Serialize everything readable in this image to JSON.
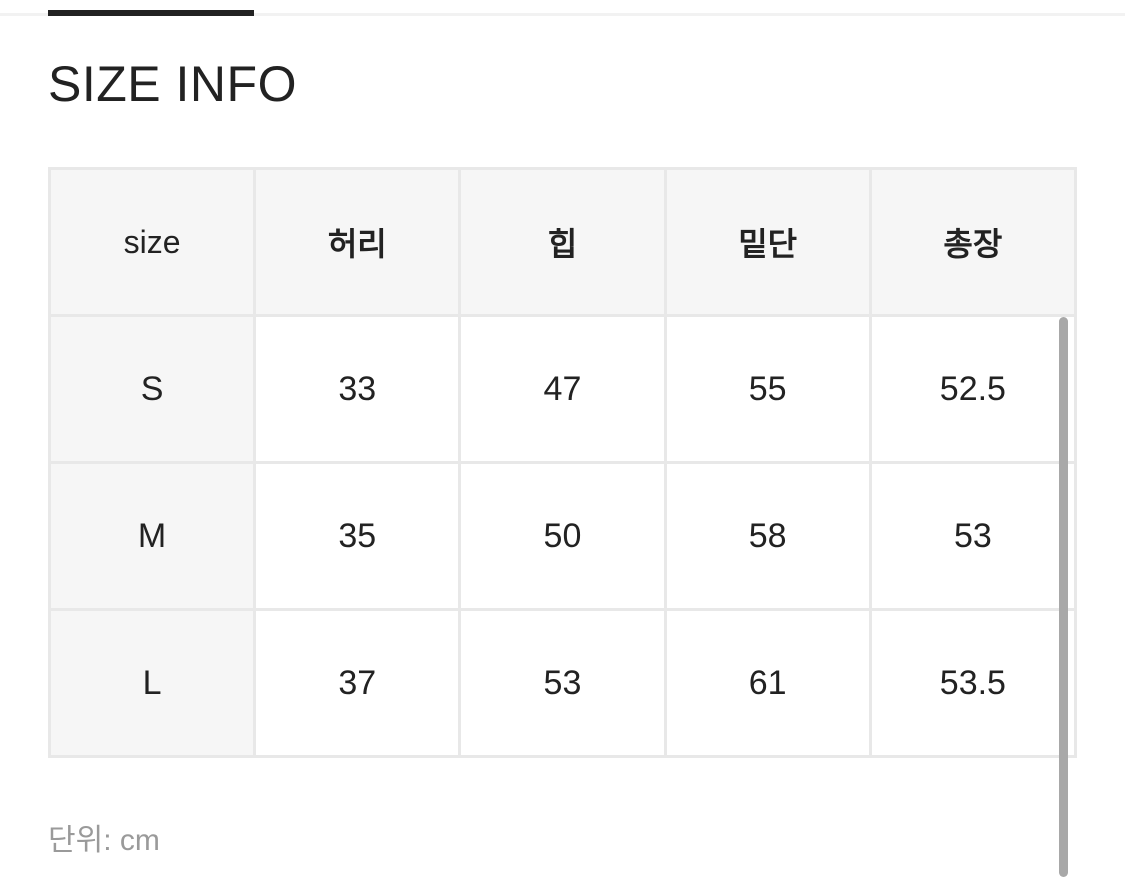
{
  "tabs": {
    "active_indicator": true
  },
  "title": "SIZE INFO",
  "table": {
    "headers": [
      "size",
      "허리",
      "힙",
      "밑단",
      "총장"
    ],
    "rows": [
      [
        "S",
        "33",
        "47",
        "55",
        "52.5"
      ],
      [
        "M",
        "35",
        "50",
        "58",
        "53"
      ],
      [
        "L",
        "37",
        "53",
        "61",
        "53.5"
      ]
    ]
  },
  "unit_note": "단위: cm",
  "colors": {
    "header_bg": "#f6f6f6",
    "border": "#e8e8e8",
    "scrollbar": "#a8a8a8",
    "text": "#222222",
    "muted": "#9a9a9a"
  }
}
